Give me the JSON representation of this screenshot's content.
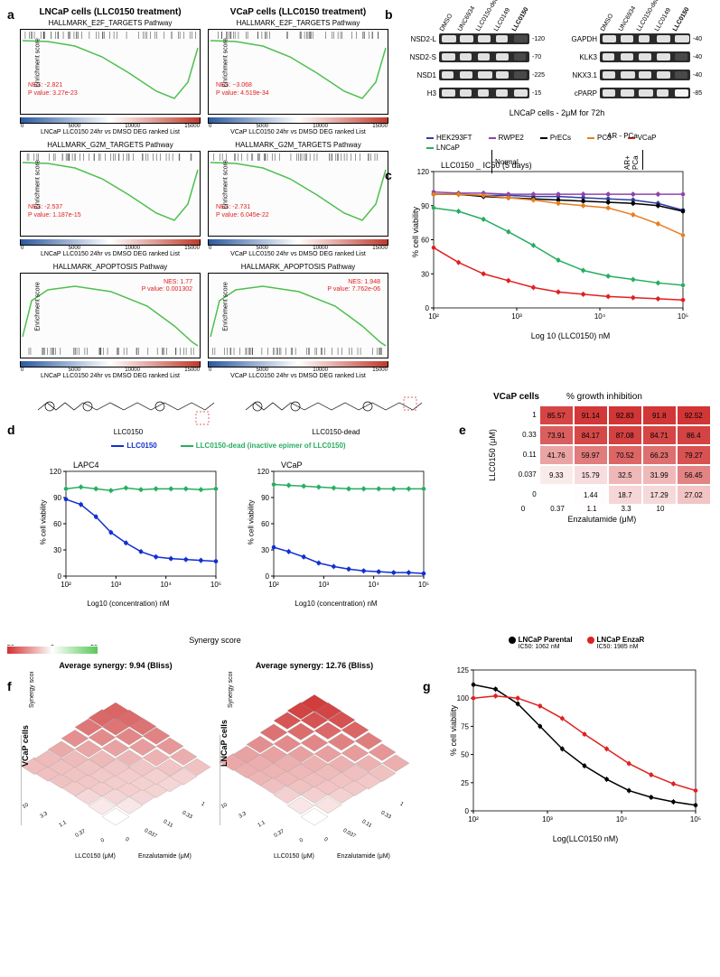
{
  "panel_labels": {
    "a": "a",
    "b": "b",
    "c": "c",
    "d": "d",
    "e": "e",
    "f": "f",
    "g": "g"
  },
  "a": {
    "col1_title": "LNCaP cells (LLC0150 treatment)",
    "col2_title": "VCaP cells  (LLC0150 treatment)",
    "plots": [
      {
        "name": "HALLMARK_E2F_TARGETS Pathway",
        "nes": "NES: -2.821",
        "p": "P value: 3.27e-23",
        "note": "LNCaP LLC0150 24hr vs DMSO DEG ranked List",
        "shape": "down"
      },
      {
        "name": "HALLMARK_E2F_TARGETS Pathway",
        "nes": "NES: −3.068",
        "p": "P value: 4.519e-34",
        "note": "VCaP LLC0150 24hr vs DMSO DEG ranked List",
        "shape": "down"
      },
      {
        "name": "HALLMARK_G2M_TARGETS Pathway",
        "nes": "NES: -2.537",
        "p": "P value: 1.187e-15",
        "note": "LNCaP LLC0150 24hr vs DMSO DEG ranked List",
        "shape": "down"
      },
      {
        "name": "HALLMARK_G2M_TARGETS Pathway",
        "nes": "NES: -2.731",
        "p": "P value: 6.045e-22",
        "note": "VCaP LLC0150 24hr vs DMSO DEG ranked List",
        "shape": "down"
      },
      {
        "name": "HALLMARK_APOPTOSIS Pathway",
        "nes": "NES: 1.77",
        "p": "P value: 0.001302",
        "note": "LNCaP LLC0150 24hr vs DMSO DEG ranked List",
        "shape": "up"
      },
      {
        "name": "HALLMARK_APOPTOSIS Pathway",
        "nes": "NES: 1.948",
        "p": "P value: 7.762e-06",
        "note": "VCaP LLC0150 24hr vs DMSO DEG ranked List",
        "shape": "up"
      }
    ],
    "xticks": [
      "0",
      "5000",
      "10000",
      "15000"
    ],
    "ylabel": "Enrichment score",
    "curve_color": "#4fbf4f",
    "bar_gradient_left": "#2c5aa0",
    "bar_gradient_mid": "#ffffff",
    "bar_gradient_right": "#c0392b"
  },
  "b": {
    "lanes": [
      "DMSO",
      "UNC6934",
      "LLC0150-dead",
      "LLC0149",
      "LLC0150"
    ],
    "left_rows": [
      {
        "label": "NSD2-L",
        "mw": "120"
      },
      {
        "label": "NSD2-S",
        "mw": "70"
      },
      {
        "label": "NSD1",
        "mw": "225"
      },
      {
        "label": "H3",
        "mw": "15"
      }
    ],
    "right_rows": [
      {
        "label": "GAPDH",
        "mw": "40"
      },
      {
        "label": "KLK3",
        "mw": "40"
      },
      {
        "label": "NKX3.1",
        "mw": "40"
      },
      {
        "label": "cPARP",
        "mw": "85"
      }
    ],
    "caption": "LNCaP cells - 2μM for 72h"
  },
  "c": {
    "legend": [
      {
        "label": "HEK293FT",
        "color": "#2c3e9f",
        "group": "Normal"
      },
      {
        "label": "RWPE2",
        "color": "#8e44ad",
        "group": "Normal"
      },
      {
        "label": "PrECs",
        "color": "#000000",
        "group": "Normal"
      },
      {
        "label": "PC3",
        "color": "#e67e22",
        "group": "AR- PCa"
      },
      {
        "label": "VCaP",
        "color": "#e02020",
        "group": "AR+ PCa"
      },
      {
        "label": "LNCaP",
        "color": "#27ae60",
        "group": "AR+ PCa"
      }
    ],
    "group_label_normal": "Normal",
    "group_label_arneg": "AR - PCa",
    "group_label_arpos": "AR+ PCa",
    "title": "LLC0150 _ IC50 (5 days)",
    "ylabel": "% cell viability",
    "xlabel": "Log 10 (LLC0150) nM",
    "xlim": [
      2,
      5
    ],
    "ylim": [
      0,
      120
    ],
    "ytick_step": 30,
    "xticks": [
      "10²",
      "10³",
      "10⁴",
      "10⁵"
    ],
    "series": {
      "HEK293FT": [
        100,
        100,
        99,
        99,
        98,
        98,
        97,
        96,
        95,
        92,
        86
      ],
      "RWPE2": [
        102,
        101,
        101,
        100,
        100,
        100,
        100,
        100,
        100,
        100,
        100
      ],
      "PrECs": [
        100,
        100,
        98,
        97,
        96,
        95,
        94,
        93,
        92,
        90,
        85
      ],
      "PC3": [
        100,
        100,
        99,
        97,
        95,
        92,
        90,
        88,
        82,
        74,
        64
      ],
      "VCaP": [
        53,
        40,
        30,
        24,
        18,
        14,
        12,
        10,
        9,
        8,
        7
      ],
      "LNCaP": [
        88,
        85,
        78,
        67,
        55,
        42,
        33,
        28,
        25,
        22,
        20
      ]
    }
  },
  "d": {
    "struct1": "LLC0150",
    "struct2": "LLC0150-dead",
    "legend": [
      {
        "label": "LLC0150",
        "color": "#1030d0"
      },
      {
        "label": "LLC0150-dead (inactive epimer of LLC0150)",
        "color": "#27ae60"
      }
    ],
    "charts": [
      {
        "title": "LAPC4",
        "blue": [
          88,
          82,
          68,
          50,
          38,
          28,
          22,
          20,
          19,
          18,
          17
        ],
        "green": [
          100,
          102,
          100,
          98,
          101,
          99,
          100,
          100,
          100,
          99,
          100
        ]
      },
      {
        "title": "VCaP",
        "blue": [
          33,
          28,
          22,
          15,
          11,
          8,
          6,
          5,
          4,
          4,
          3
        ],
        "green": [
          105,
          104,
          103,
          102,
          101,
          100,
          100,
          100,
          100,
          100,
          100
        ]
      }
    ],
    "ylabel": "% cell viability",
    "xlabel": "Log10 (concentration) nM",
    "xticks": [
      "10²",
      "10³",
      "10⁴",
      "10⁵"
    ],
    "ylim": [
      0,
      120
    ],
    "ytick_step": 30
  },
  "e": {
    "title": "VCaP cells",
    "subtitle": "% growth inhibition",
    "ylabel": "LLC0150 (μM)",
    "xlabel": "Enzalutamide (μM)",
    "yticks": [
      "1",
      "0.33",
      "0.11",
      "0.037",
      "0"
    ],
    "xticks": [
      "0",
      "0.37",
      "1.1",
      "3.3",
      "10"
    ],
    "rows": [
      [
        85.57,
        91.14,
        92.83,
        91.8,
        92.52
      ],
      [
        73.91,
        84.17,
        87.08,
        84.71,
        86.4
      ],
      [
        41.76,
        59.97,
        70.52,
        66.23,
        79.27
      ],
      [
        9.33,
        15.79,
        32.5,
        31.99,
        56.45
      ],
      [
        0,
        1.44,
        18.7,
        17.29,
        27.02
      ]
    ],
    "color_low": "#ffffff",
    "color_high": "#d03030"
  },
  "f": {
    "legend_label": "Synergy score",
    "scale_low": "-20",
    "scale_mid": "0",
    "scale_high": "20",
    "color_low": "#58c858",
    "color_mid": "#ffffff",
    "color_high": "#d03030",
    "left": {
      "title": "Average synergy: 9.94 (Bliss)",
      "ylabel": "VCaP cells",
      "xlabel": "LLC0150 (μM)",
      "zlabel": "Enzalutamide (μM)"
    },
    "right": {
      "title": "Average synergy: 12.76 (Bliss)",
      "ylabel": "LNCaP cells",
      "xlabel": "LLC0150 (μM)",
      "zlabel": "Enzalutamide (μM)"
    },
    "axis_z": [
      "-40",
      "-30",
      "-20",
      "-10",
      "0",
      "10",
      "20",
      "30",
      "40"
    ],
    "axis_x": [
      "0",
      "0.037",
      "0.11",
      "0.33",
      "1"
    ],
    "axis_y": [
      "0",
      "0.37",
      "1.1",
      "3.3",
      "10"
    ]
  },
  "g": {
    "legend": [
      {
        "label": "LNCaP Parental",
        "sub": "IC50: 1062 nM",
        "color": "#000000"
      },
      {
        "label": "LNCaP EnzaR",
        "sub": "IC50: 1985 nM",
        "color": "#e02020"
      }
    ],
    "ylabel": "% cell viability",
    "xlabel": "Log(LLC0150 nM)",
    "xticks": [
      "10²",
      "10³",
      "10⁴",
      "10⁵"
    ],
    "ylim": [
      0,
      125
    ],
    "ytick_step": 25,
    "series": {
      "parental": [
        112,
        108,
        95,
        75,
        55,
        40,
        28,
        18,
        12,
        8,
        5
      ],
      "enzar": [
        100,
        102,
        100,
        93,
        82,
        68,
        55,
        42,
        32,
        24,
        18
      ]
    }
  }
}
